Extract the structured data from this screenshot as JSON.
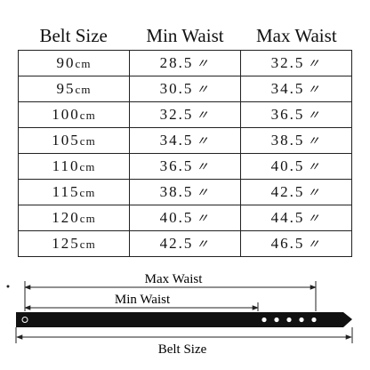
{
  "table": {
    "header": [
      "Belt Size",
      "Min Waist",
      "Max Waist"
    ],
    "rows": [
      [
        [
          "90",
          "cm"
        ],
        [
          "28.5",
          "〃"
        ],
        [
          "32.5",
          "〃"
        ]
      ],
      [
        [
          "95",
          "cm"
        ],
        [
          "30.5",
          "〃"
        ],
        [
          "34.5",
          "〃"
        ]
      ],
      [
        [
          "100",
          "cm"
        ],
        [
          "32.5",
          "〃"
        ],
        [
          "36.5",
          "〃"
        ]
      ],
      [
        [
          "105",
          "cm"
        ],
        [
          "34.5",
          "〃"
        ],
        [
          "38.5",
          "〃"
        ]
      ],
      [
        [
          "110",
          "cm"
        ],
        [
          "36.5",
          "〃"
        ],
        [
          "40.5",
          "〃"
        ]
      ],
      [
        [
          "115",
          "cm"
        ],
        [
          "38.5",
          "〃"
        ],
        [
          "42.5",
          "〃"
        ]
      ],
      [
        [
          "120",
          "cm"
        ],
        [
          "40.5",
          "〃"
        ],
        [
          "44.5",
          "〃"
        ]
      ],
      [
        [
          "125",
          "cm"
        ],
        [
          "42.5",
          "〃"
        ],
        [
          "46.5",
          "〃"
        ]
      ]
    ]
  },
  "diagram": {
    "max_label": "Max Waist",
    "min_label": "Min Waist",
    "belt_label": "Belt Size"
  }
}
